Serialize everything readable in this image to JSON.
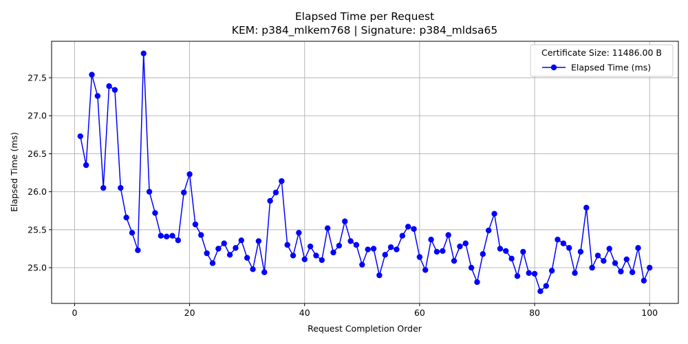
{
  "chart_data": {
    "type": "line",
    "title": "Elapsed Time per Request",
    "subtitle": "KEM: p384_mlkem768 | Signature: p384_mldsa65",
    "xlabel": "Request Completion Order",
    "ylabel": "Elapsed Time (ms)",
    "xlim": [
      -4,
      105
    ],
    "ylim": [
      24.53,
      27.98
    ],
    "xticks": [
      0,
      20,
      40,
      60,
      80,
      100
    ],
    "yticks": [
      25.0,
      25.5,
      26.0,
      26.5,
      27.0,
      27.5
    ],
    "xtick_labels": [
      "0",
      "20",
      "40",
      "60",
      "80",
      "100"
    ],
    "ytick_labels": [
      "25.0",
      "25.5",
      "26.0",
      "26.5",
      "27.0",
      "27.5"
    ],
    "grid": true,
    "legend": {
      "placement": "top-right",
      "title": "Certificate Size: 11486.00 B",
      "entries": [
        "Elapsed Time (ms)"
      ]
    },
    "series": [
      {
        "name": "Elapsed Time (ms)",
        "color": "#0000ff",
        "marker": "circle",
        "x": [
          1,
          2,
          3,
          4,
          5,
          6,
          7,
          8,
          9,
          10,
          11,
          12,
          13,
          14,
          15,
          16,
          17,
          18,
          19,
          20,
          21,
          22,
          23,
          24,
          25,
          26,
          27,
          28,
          29,
          30,
          31,
          32,
          33,
          34,
          35,
          36,
          37,
          38,
          39,
          40,
          41,
          42,
          43,
          44,
          45,
          46,
          47,
          48,
          49,
          50,
          51,
          52,
          53,
          54,
          55,
          56,
          57,
          58,
          59,
          60,
          61,
          62,
          63,
          64,
          65,
          66,
          67,
          68,
          69,
          70,
          71,
          72,
          73,
          74,
          75,
          76,
          77,
          78,
          79,
          80,
          81,
          82,
          83,
          84,
          85,
          86,
          87,
          88,
          89,
          90,
          91,
          92,
          93,
          94,
          95,
          96,
          97,
          98,
          99,
          100
        ],
        "values": [
          26.73,
          26.35,
          27.54,
          27.26,
          26.05,
          27.39,
          27.34,
          26.05,
          25.66,
          25.46,
          25.23,
          27.82,
          26.0,
          25.72,
          25.42,
          25.41,
          25.42,
          25.36,
          25.99,
          26.23,
          25.57,
          25.43,
          25.19,
          25.06,
          25.25,
          25.32,
          25.17,
          25.26,
          25.36,
          25.13,
          24.98,
          25.35,
          24.94,
          25.88,
          25.99,
          26.14,
          25.3,
          25.16,
          25.46,
          25.11,
          25.28,
          25.16,
          25.1,
          25.52,
          25.2,
          25.29,
          25.61,
          25.35,
          25.3,
          25.04,
          25.24,
          25.25,
          24.9,
          25.17,
          25.27,
          25.24,
          25.42,
          25.54,
          25.51,
          25.14,
          24.97,
          25.37,
          25.21,
          25.22,
          25.43,
          25.09,
          25.28,
          25.32,
          25.0,
          24.81,
          25.18,
          25.49,
          25.71,
          25.25,
          25.22,
          25.12,
          24.89,
          25.21,
          24.93,
          24.92,
          24.69,
          24.76,
          24.96,
          25.37,
          25.32,
          25.26,
          24.93,
          25.21,
          25.79,
          25.0,
          25.16,
          25.09,
          25.25,
          25.06,
          24.95,
          25.11,
          24.94,
          25.26,
          24.83,
          25.0
        ]
      }
    ]
  }
}
